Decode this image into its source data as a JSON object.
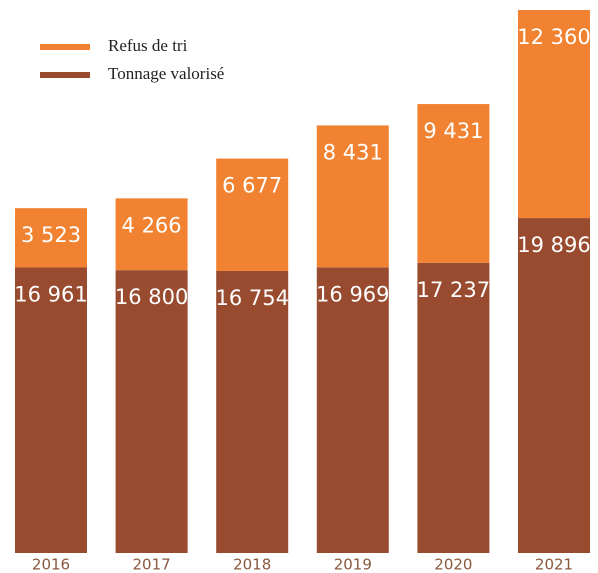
{
  "chart_data": {
    "type": "stacked_bar",
    "categories": [
      "2016",
      "2017",
      "2018",
      "2019",
      "2020",
      "2021"
    ],
    "series": [
      {
        "name": "Tonnage valorisé",
        "color": "#984b2f",
        "values": [
          16961,
          16800,
          16754,
          16969,
          17237,
          19896
        ],
        "value_labels": [
          "16 961",
          "16 800",
          "16 754",
          "16 969",
          "17 237",
          "19 896"
        ]
      },
      {
        "name": "Refus de tri",
        "color": "#f08231",
        "values": [
          3523,
          4266,
          6677,
          8431,
          9431,
          12360
        ],
        "value_labels": [
          "3 523",
          "4 266",
          "6 677",
          "8 431",
          "9 431",
          "12 360"
        ]
      }
    ],
    "legend": "top-left"
  }
}
